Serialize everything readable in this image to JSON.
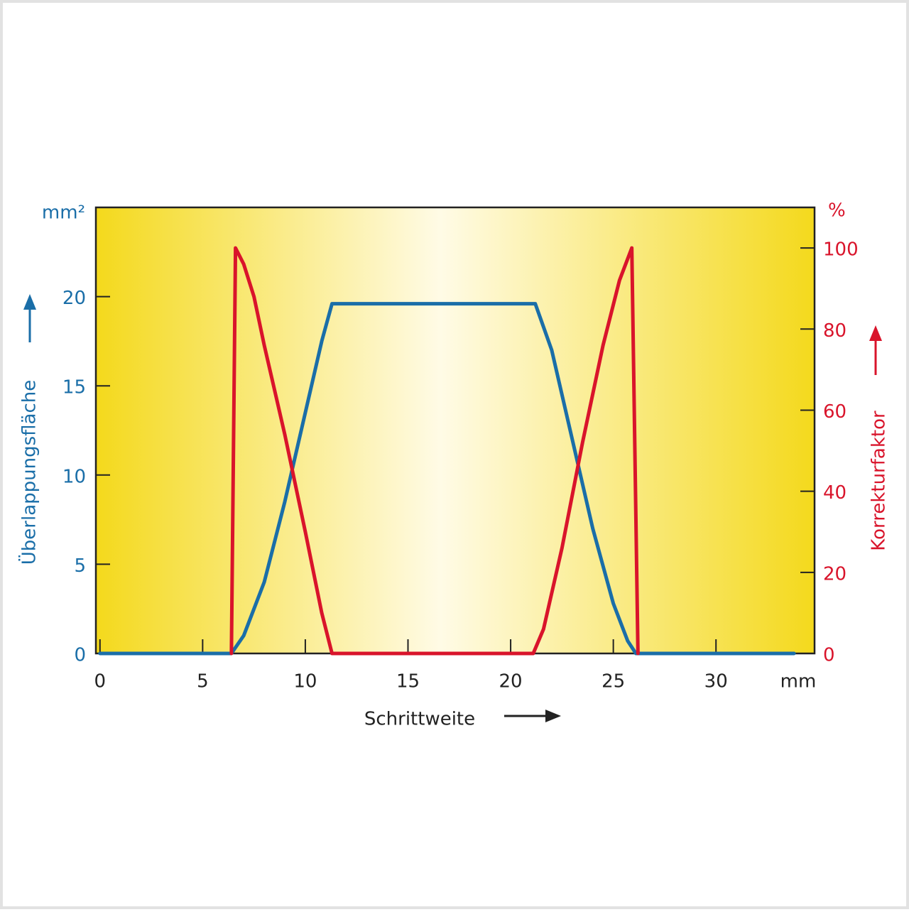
{
  "chart_data": {
    "type": "line",
    "x_label": "Schrittweite",
    "x_unit": "mm",
    "y_label": "Überlappungsfläche",
    "y_unit": "mm²",
    "y2_label": "Korrekturfaktor",
    "y2_unit": "%",
    "xlim": [
      -0.2,
      34.8
    ],
    "xticks": [
      0,
      5,
      10,
      15,
      20,
      25,
      30
    ],
    "ylim": [
      0,
      25
    ],
    "yticks": [
      0,
      5,
      10,
      15,
      20
    ],
    "y2lim": [
      0,
      110
    ],
    "y2ticks": [
      0,
      20,
      40,
      60,
      80,
      100
    ],
    "series": [
      {
        "color": "#1a6ea8",
        "axis": "y",
        "x": [
          0,
          6.4,
          7,
          8,
          9,
          10,
          10.8,
          11.3,
          21.2,
          22,
          23,
          24,
          25,
          25.7,
          26.1,
          33.8
        ],
        "values": [
          0,
          0,
          1,
          4,
          8.5,
          13.5,
          17.5,
          19.6,
          19.6,
          17,
          12,
          7,
          2.8,
          0.7,
          0,
          0
        ]
      },
      {
        "color": "#d9142b",
        "axis": "y2",
        "x": [
          6.4,
          6.6,
          7,
          7.5,
          8,
          9,
          10,
          10.8,
          11.3,
          21.1,
          21.6,
          22.5,
          23.5,
          24.5,
          25.3,
          25.9,
          26.2
        ],
        "values": [
          0,
          100,
          96,
          88,
          76,
          54,
          30,
          10,
          0,
          0,
          6,
          26,
          52,
          76,
          92,
          100,
          0
        ]
      }
    ]
  }
}
